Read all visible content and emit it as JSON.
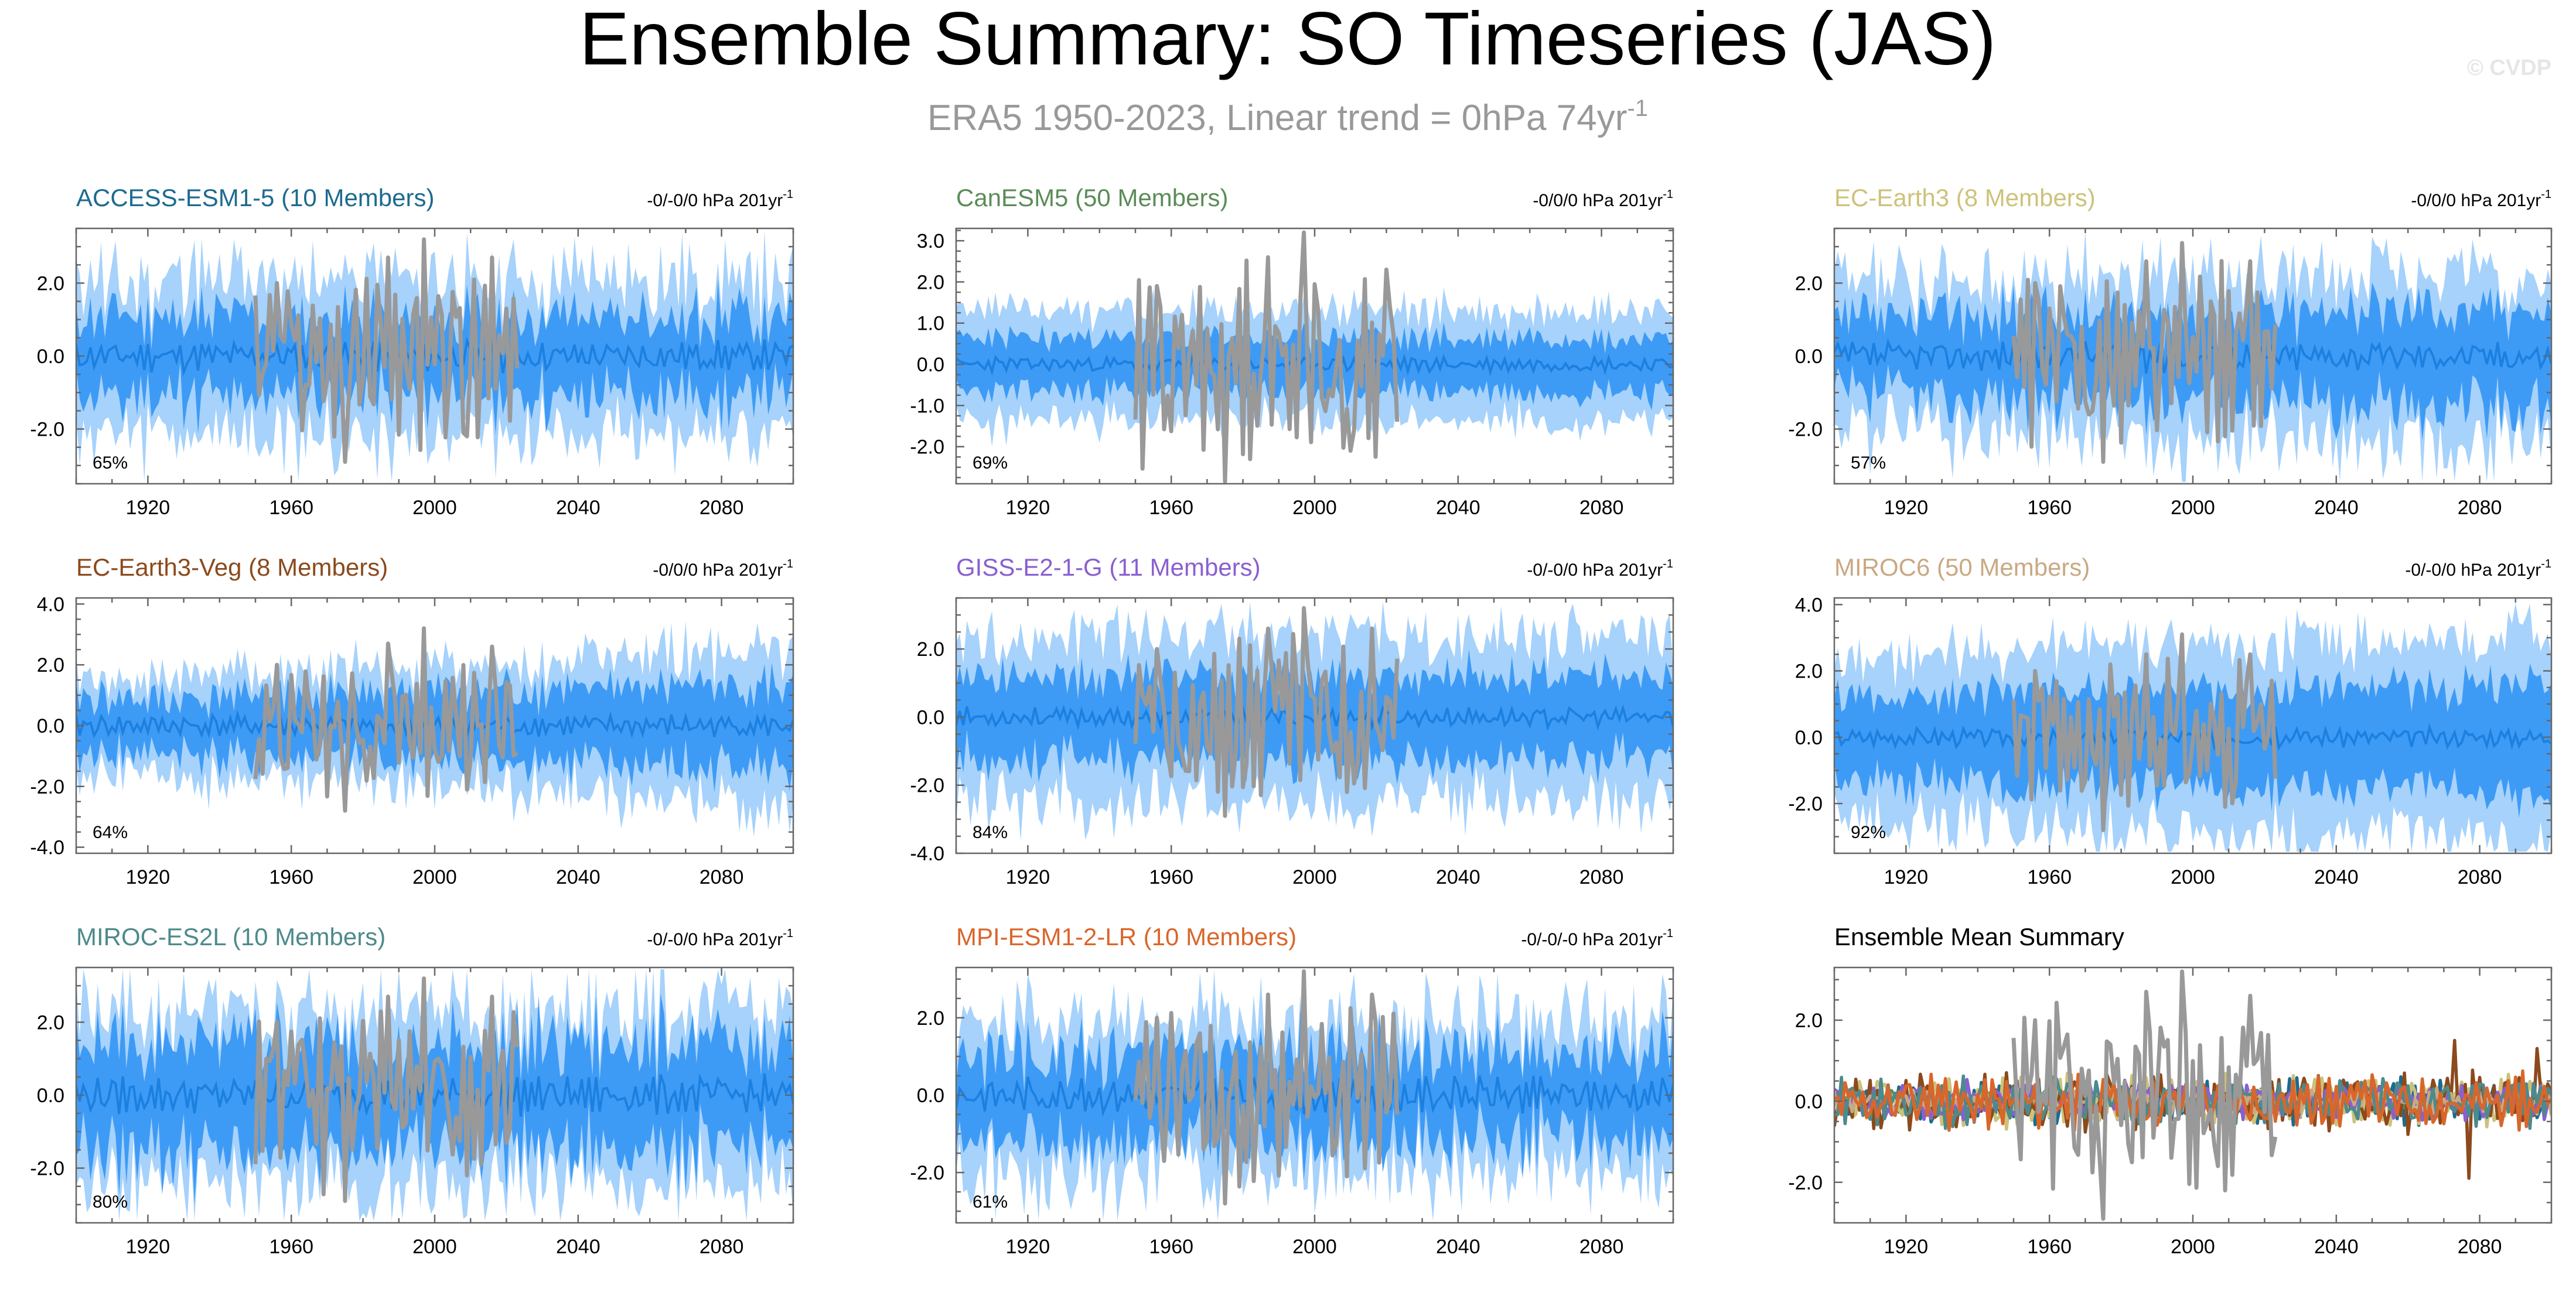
{
  "figure": {
    "title": "Ensemble Summary: SO Timeseries (JAS)",
    "subtitle_main": "ERA5 1950-2023, Linear trend = 0hPa 74yr",
    "subtitle_sup": "-1",
    "watermark": "© CVDP"
  },
  "colors": {
    "outer_band": "#a6d2fb",
    "inner_band": "#3e9bf5",
    "ensemble_mean": "#1c80e0",
    "observations": "#999999",
    "title_grey": "#999999"
  },
  "chart_data": [
    {
      "type": "line",
      "id": "access",
      "title": "ACCESS-ESM1-5 (10 Members)",
      "title_color": "#1d6b8e",
      "trend_text": "-0/-0/0 hPa 201yr",
      "trend_sup": "-1",
      "percent": "65%",
      "xlim": [
        1900,
        2100
      ],
      "xticks": [
        1920,
        1960,
        2000,
        2040,
        2080
      ],
      "ylim": [
        -3.5,
        3.5
      ],
      "yticks": [
        -2.0,
        0.0,
        2.0
      ],
      "ytick_labels": [
        "-2.0",
        "0.0",
        "2.0"
      ],
      "seed": 11,
      "mean_amp": 0.45,
      "inner_half": 1.05,
      "outer_half": 2.05,
      "band_var": 0.35,
      "band_trend": 0.0,
      "series": [
        {
          "name": "Observations (ERA5)",
          "color": "#999999",
          "x_start": 1950,
          "x_end": 2023,
          "amp": 1.5,
          "peaks": [
            [
              1956,
              2.0
            ],
            [
              1975,
              -2.9
            ],
            [
              1987,
              2.7
            ],
            [
              1997,
              3.2
            ],
            [
              2009,
              -2.2
            ],
            [
              2016,
              2.7
            ]
          ]
        }
      ]
    },
    {
      "type": "line",
      "id": "canesm",
      "title": "CanESM5 (50 Members)",
      "title_color": "#5b8c58",
      "trend_text": "-0/0/0 hPa 201yr",
      "trend_sup": "-1",
      "percent": "69%",
      "xlim": [
        1900,
        2100
      ],
      "xticks": [
        1920,
        1960,
        2000,
        2040,
        2080
      ],
      "ylim": [
        -2.9,
        3.3
      ],
      "yticks": [
        -2.0,
        -1.0,
        0.0,
        1.0,
        2.0,
        3.0
      ],
      "ytick_labels": [
        "-2.0",
        "-1.0",
        "0.0",
        "1.0",
        "2.0",
        "3.0"
      ],
      "seed": 23,
      "mean_amp": 0.2,
      "inner_half": 0.65,
      "outer_half": 1.3,
      "band_var": 0.22,
      "band_trend": 0.0,
      "series": [
        {
          "name": "Observations (ERA5)",
          "color": "#999999",
          "x_start": 1950,
          "x_end": 2023,
          "amp": 1.4,
          "peaks": [
            [
              1956,
              1.9
            ],
            [
              1975,
              -2.9
            ],
            [
              1987,
              2.6
            ],
            [
              1997,
              3.2
            ],
            [
              2010,
              -2.1
            ],
            [
              2020,
              2.3
            ]
          ]
        }
      ]
    },
    {
      "type": "line",
      "id": "ecearth3",
      "title": "EC-Earth3 (8 Members)",
      "title_color": "#cdc27a",
      "trend_text": "-0/0/0 hPa 201yr",
      "trend_sup": "-1",
      "percent": "57%",
      "xlim": [
        1900,
        2100
      ],
      "xticks": [
        1920,
        1960,
        2000,
        2040,
        2080
      ],
      "ylim": [
        -3.5,
        3.5
      ],
      "yticks": [
        -2.0,
        0.0,
        2.0
      ],
      "ytick_labels": [
        "-2.0",
        "0.0",
        "2.0"
      ],
      "seed": 37,
      "mean_amp": 0.45,
      "inner_half": 1.05,
      "outer_half": 1.95,
      "band_var": 0.35,
      "band_trend": 0.25,
      "series": [
        {
          "name": "Observations (ERA5)",
          "color": "#999999",
          "x_start": 1950,
          "x_end": 2023,
          "amp": 1.5,
          "peaks": [
            [
              1956,
              2.0
            ],
            [
              1975,
              -2.9
            ],
            [
              1987,
              2.6
            ],
            [
              1997,
              3.1
            ],
            [
              2009,
              -2.2
            ],
            [
              2016,
              2.6
            ]
          ]
        }
      ]
    },
    {
      "type": "line",
      "id": "ecearth3veg",
      "title": "EC-Earth3-Veg (8 Members)",
      "title_color": "#8b4a1c",
      "trend_text": "-0/0/0 hPa 201yr",
      "trend_sup": "-1",
      "percent": "64%",
      "xlim": [
        1900,
        2100
      ],
      "xticks": [
        1920,
        1960,
        2000,
        2040,
        2080
      ],
      "ylim": [
        -4.2,
        4.2
      ],
      "yticks": [
        -4.0,
        -2.0,
        0.0,
        2.0,
        4.0
      ],
      "ytick_labels": [
        "-4.0",
        "-2.0",
        "0.0",
        "2.0",
        "4.0"
      ],
      "seed": 41,
      "mean_amp": 0.4,
      "inner_half": 0.8,
      "outer_half": 1.45,
      "band_var": 0.3,
      "band_trend": 0.7,
      "series": [
        {
          "name": "Observations (ERA5)",
          "color": "#999999",
          "x_start": 1950,
          "x_end": 2023,
          "amp": 1.4,
          "peaks": [
            [
              1956,
              2.0
            ],
            [
              1975,
              -2.8
            ],
            [
              1987,
              2.7
            ],
            [
              1997,
              3.2
            ],
            [
              2009,
              -2.1
            ],
            [
              2016,
              2.6
            ]
          ]
        }
      ]
    },
    {
      "type": "line",
      "id": "giss",
      "title": "GISS-E2-1-G (11 Members)",
      "title_color": "#8a5fd0",
      "trend_text": "-0/-0/0 hPa 201yr",
      "trend_sup": "-1",
      "percent": "84%",
      "xlim": [
        1900,
        2100
      ],
      "xticks": [
        1920,
        1960,
        2000,
        2040,
        2080
      ],
      "ylim": [
        -4.0,
        3.5
      ],
      "yticks": [
        -4.0,
        -2.0,
        0.0,
        2.0
      ],
      "ytick_labels": [
        "-4.0",
        "-2.0",
        "0.0",
        "2.0"
      ],
      "seed": 53,
      "mean_amp": 0.3,
      "inner_half": 1.2,
      "outer_half": 2.35,
      "band_var": 0.3,
      "band_trend": 0.0,
      "series": [
        {
          "name": "Observations (ERA5)",
          "color": "#999999",
          "x_start": 1950,
          "x_end": 2023,
          "amp": 1.5,
          "peaks": [
            [
              1956,
              2.0
            ],
            [
              1975,
              -2.9
            ],
            [
              1987,
              2.6
            ],
            [
              1997,
              3.2
            ],
            [
              2009,
              -2.2
            ],
            [
              2016,
              2.6
            ]
          ]
        }
      ]
    },
    {
      "type": "line",
      "id": "miroc6",
      "title": "MIROC6 (50 Members)",
      "title_color": "#c9a983",
      "trend_text": "-0/-0/0 hPa 201yr",
      "trend_sup": "-1",
      "percent": "92%",
      "xlim": [
        1900,
        2100
      ],
      "xticks": [
        1920,
        1960,
        2000,
        2040,
        2080
      ],
      "ylim": [
        -3.5,
        4.2
      ],
      "yticks": [
        -2.0,
        0.0,
        2.0,
        4.0
      ],
      "ytick_labels": [
        "-2.0",
        "0.0",
        "2.0",
        "4.0"
      ],
      "seed": 67,
      "mean_amp": 0.3,
      "inner_half": 1.25,
      "outer_half": 2.45,
      "band_var": 0.25,
      "band_trend": 0.3,
      "series": [
        {
          "name": "Observations (ERA5)",
          "color": "#999999",
          "x_start": 1950,
          "x_end": 2023,
          "amp": 1.4,
          "peaks": [
            [
              1956,
              2.0
            ],
            [
              1975,
              -2.8
            ],
            [
              1987,
              2.5
            ],
            [
              1997,
              3.1
            ],
            [
              2009,
              -2.1
            ],
            [
              2016,
              2.5
            ]
          ]
        }
      ]
    },
    {
      "type": "line",
      "id": "mirocES2L",
      "title": "MIROC-ES2L (10 Members)",
      "title_color": "#4d8a8c",
      "trend_text": "-0/-0/0 hPa 201yr",
      "trend_sup": "-1",
      "percent": "80%",
      "xlim": [
        1900,
        2100
      ],
      "xticks": [
        1920,
        1960,
        2000,
        2040,
        2080
      ],
      "ylim": [
        -3.5,
        3.5
      ],
      "yticks": [
        -2.0,
        0.0,
        2.0
      ],
      "ytick_labels": [
        "-2.0",
        "0.0",
        "2.0"
      ],
      "seed": 79,
      "mean_amp": 0.55,
      "inner_half": 1.4,
      "outer_half": 2.4,
      "band_var": 0.35,
      "band_trend": 0.0,
      "series": [
        {
          "name": "Observations (ERA5)",
          "color": "#999999",
          "x_start": 1950,
          "x_end": 2023,
          "amp": 1.5,
          "peaks": [
            [
              1956,
              2.0
            ],
            [
              1975,
              -2.9
            ],
            [
              1987,
              2.7
            ],
            [
              1997,
              3.2
            ],
            [
              2009,
              -2.2
            ],
            [
              2016,
              2.7
            ]
          ]
        }
      ]
    },
    {
      "type": "line",
      "id": "mpi",
      "title": "MPI-ESM1-2-LR (10 Members)",
      "title_color": "#d9662b",
      "trend_text": "-0/-0/-0 hPa 201yr",
      "trend_sup": "-1",
      "percent": "61%",
      "xlim": [
        1900,
        2100
      ],
      "xticks": [
        1920,
        1960,
        2000,
        2040,
        2080
      ],
      "ylim": [
        -3.3,
        3.3
      ],
      "yticks": [
        -2.0,
        0.0,
        2.0
      ],
      "ytick_labels": [
        "-2.0",
        "0.0",
        "2.0"
      ],
      "seed": 83,
      "mean_amp": 0.5,
      "inner_half": 1.1,
      "outer_half": 1.95,
      "band_var": 0.35,
      "band_trend": 0.0,
      "series": [
        {
          "name": "Observations (ERA5)",
          "color": "#999999",
          "x_start": 1950,
          "x_end": 2023,
          "amp": 1.5,
          "peaks": [
            [
              1956,
              2.0
            ],
            [
              1975,
              -2.8
            ],
            [
              1987,
              2.6
            ],
            [
              1997,
              3.2
            ],
            [
              2009,
              -2.1
            ],
            [
              2016,
              2.6
            ]
          ]
        }
      ]
    },
    {
      "type": "line",
      "id": "summary",
      "title": "Ensemble Mean Summary",
      "title_color": "#000000",
      "xlim": [
        1900,
        2100
      ],
      "xticks": [
        1920,
        1960,
        2000,
        2040,
        2080
      ],
      "ylim": [
        -3.0,
        3.3
      ],
      "yticks": [
        -2.0,
        0.0,
        2.0
      ],
      "ytick_labels": [
        "-2.0",
        "0.0",
        "2.0"
      ],
      "seed": 97,
      "series": [
        {
          "name": "ACCESS-ESM1-5",
          "color": "#1d6b8e",
          "x_start": 1900,
          "x_end": 2100,
          "amp": 0.35
        },
        {
          "name": "CanESM5",
          "color": "#5b8c58",
          "x_start": 1900,
          "x_end": 2100,
          "amp": 0.2
        },
        {
          "name": "EC-Earth3",
          "color": "#cdc27a",
          "x_start": 1900,
          "x_end": 2100,
          "amp": 0.4
        },
        {
          "name": "EC-Earth3-Veg",
          "color": "#8b4a1c",
          "x_start": 1900,
          "x_end": 2100,
          "amp": 0.45,
          "peaks": [
            [
              2073,
              1.5
            ],
            [
              2077,
              -1.9
            ],
            [
              2096,
              1.3
            ]
          ]
        },
        {
          "name": "GISS-E2-1-G",
          "color": "#8a5fd0",
          "x_start": 1900,
          "x_end": 2100,
          "amp": 0.3
        },
        {
          "name": "MIROC6",
          "color": "#c9a983",
          "x_start": 1900,
          "x_end": 2100,
          "amp": 0.2
        },
        {
          "name": "MIROC-ES2L",
          "color": "#4d8a8c",
          "x_start": 1900,
          "x_end": 2100,
          "amp": 0.4
        },
        {
          "name": "MPI-ESM1-2-LR",
          "color": "#d9662b",
          "x_start": 1900,
          "x_end": 2100,
          "amp": 0.4
        },
        {
          "name": "ERA5",
          "color": "#999999",
          "x_start": 1950,
          "x_end": 2023,
          "amp": 1.5,
          "peaks": [
            [
              1956,
              2.0
            ],
            [
              1975,
              -2.9
            ],
            [
              1987,
              2.7
            ],
            [
              1997,
              3.2
            ],
            [
              2009,
              -2.2
            ],
            [
              2016,
              2.6
            ]
          ]
        }
      ]
    }
  ]
}
